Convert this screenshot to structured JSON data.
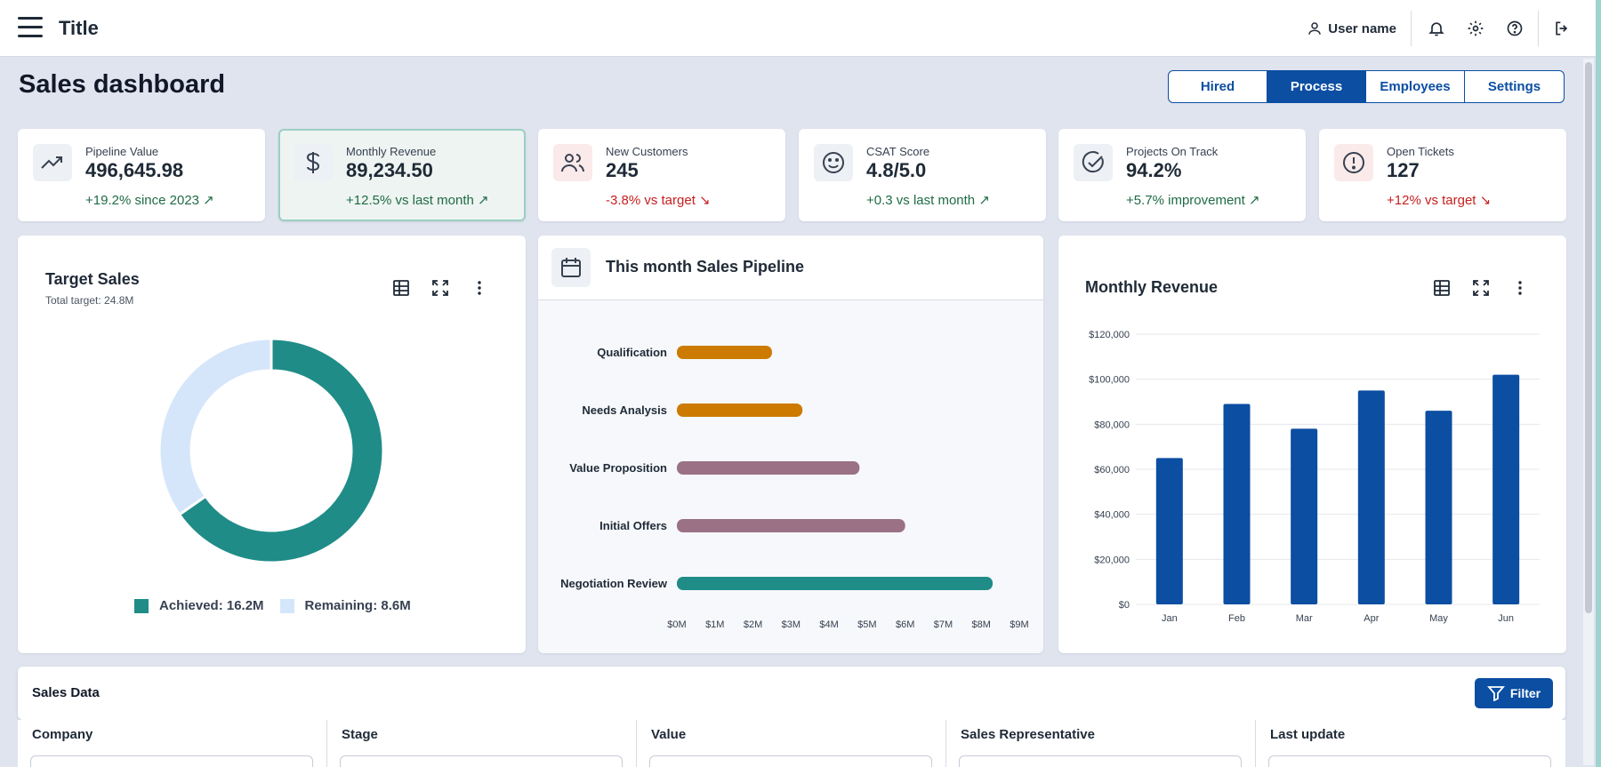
{
  "appbar": {
    "title": "Title",
    "user_name": "User name",
    "icons": [
      "menu-icon",
      "user-icon",
      "bell-icon",
      "gear-icon",
      "help-icon",
      "logout-icon"
    ]
  },
  "page": {
    "title": "Sales dashboard"
  },
  "tabs": [
    {
      "label": "Hired",
      "active": false
    },
    {
      "label": "Process",
      "active": true
    },
    {
      "label": "Employees",
      "active": false
    },
    {
      "label": "Settings",
      "active": false
    }
  ],
  "kpis": [
    {
      "label": "Pipeline Value",
      "value": "496,645.98",
      "trend": "+19.2% since 2023 ↗",
      "direction": "up",
      "icon": "trending-up-icon"
    },
    {
      "label": "Monthly Revenue",
      "value": "89,234.50",
      "trend": "+12.5% vs last month ↗",
      "direction": "up",
      "icon": "dollar-icon"
    },
    {
      "label": "New Customers",
      "value": "245",
      "trend": "-3.8% vs target ↘",
      "direction": "down",
      "icon": "users-icon"
    },
    {
      "label": "CSAT Score",
      "value": "4.8/5.0",
      "trend": "+0.3 vs last month ↗",
      "direction": "up",
      "icon": "smile-icon"
    },
    {
      "label": "Projects On Track",
      "value": "94.2%",
      "trend": "+5.7% improvement ↗",
      "direction": "up",
      "icon": "check-circle-icon"
    },
    {
      "label": "Open Tickets",
      "value": "127",
      "trend": "+12% vs target ↘",
      "direction": "down",
      "icon": "alert-circle-icon"
    }
  ],
  "target_sales": {
    "title": "Target Sales",
    "subtitle": "Total target: 24.8M",
    "legend_achieved": "Achieved: 16.2M",
    "legend_remaining": "Remaining: 8.6M"
  },
  "pipeline": {
    "title": "This month Sales Pipeline"
  },
  "monthly_revenue": {
    "title": "Monthly Revenue"
  },
  "colors": {
    "primary": "#0b4ea2",
    "teal": "#1f8c87",
    "light_blue": "#d6e6fa",
    "orange": "#cc7a00",
    "mauve": "#9a7185"
  },
  "chart_data": [
    {
      "type": "pie",
      "title": "Target Sales",
      "subtitle": "Total target: 24.8M",
      "labels": [
        "Achieved",
        "Remaining"
      ],
      "values": [
        16.2,
        8.6
      ],
      "colors": [
        "#1f8c87",
        "#d6e6fa"
      ],
      "legend": "bottom"
    },
    {
      "type": "bar",
      "orientation": "horizontal",
      "title": "This month Sales Pipeline",
      "categories": [
        "Qualification",
        "Needs Analysis",
        "Value Proposition",
        "Initial Offers",
        "Negotiation Review"
      ],
      "values": [
        2.5,
        3.3,
        4.8,
        6.0,
        8.3
      ],
      "colors": [
        "#cc7a00",
        "#cc7a00",
        "#9a7185",
        "#9a7185",
        "#1f8c87"
      ],
      "x_ticks": [
        "$0M",
        "$1M",
        "$2M",
        "$3M",
        "$4M",
        "$5M",
        "$6M",
        "$7M",
        "$8M",
        "$9M"
      ],
      "xlim": [
        0,
        9
      ]
    },
    {
      "type": "bar",
      "title": "Monthly Revenue",
      "categories": [
        "Jan",
        "Feb",
        "Mar",
        "Apr",
        "May",
        "Jun"
      ],
      "values": [
        65000,
        89000,
        78000,
        95000,
        86000,
        102000
      ],
      "y_ticks": [
        "$0",
        "$20,000",
        "$40,000",
        "$60,000",
        "$80,000",
        "$100,000",
        "$120,000"
      ],
      "ylim": [
        0,
        120000
      ],
      "grid": true,
      "color": "#0b4ea2"
    }
  ],
  "sales_data": {
    "title": "Sales Data",
    "filter_label": "Filter",
    "columns": [
      "Company",
      "Stage",
      "Value",
      "Sales Representative",
      "Last update"
    ]
  }
}
